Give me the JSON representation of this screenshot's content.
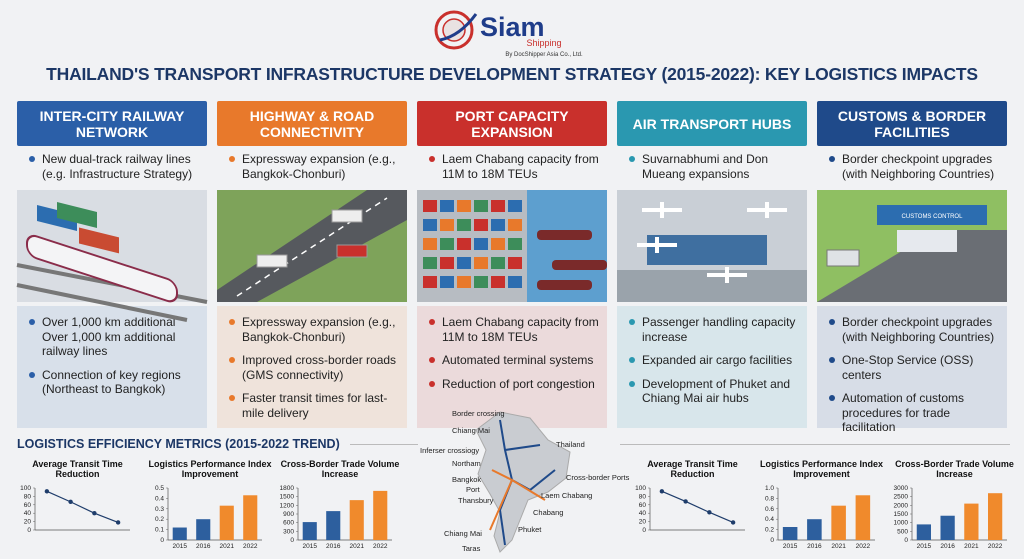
{
  "header": {
    "brand": "Siam",
    "brand_sub": "Shipping",
    "tagline": "By DocShipper Asia Co., Ltd.",
    "title": "THAILAND'S TRANSPORT INFRASTRUCTURE DEVELOPMENT STRATEGY (2015-2022): KEY LOGISTICS IMPACTS"
  },
  "columns": [
    {
      "title": "INTER-CITY RAILWAY NETWORK",
      "color": "#2b5fa8",
      "top_bullets": [
        "New dual-track railway lines (e.g. Infrastructure Strategy)"
      ],
      "bottom_bullets": [
        "Over 1,000 km additional Over 1,000 km additional railway lines",
        "Connection of key regions (Northeast to Bangkok)"
      ]
    },
    {
      "title": "HIGHWAY & ROAD CONNECTIVITY",
      "color": "#e8792b",
      "top_bullets": [
        "Expressway expansion (e.g., Bangkok-Chonburi)"
      ],
      "bottom_bullets": [
        "Expressway expansion (e.g., Bangkok-Chonburi)",
        "Improved cross-border roads (GMS connectivity)",
        "Faster transit times for last-mile delivery"
      ]
    },
    {
      "title": "PORT CAPACITY EXPANSION",
      "color": "#c9302c",
      "top_bullets": [
        "Laem Chabang capacity from 11M to 18M TEUs"
      ],
      "bottom_bullets": [
        "Laem Chabang capacity from 11M to 18M TEUs",
        "Automated terminal systems",
        "Reduction of port congestion"
      ]
    },
    {
      "title": "AIR TRANSPORT HUBS",
      "color": "#2a98b0",
      "top_bullets": [
        "Suvarnabhumi and Don Mueang expansions"
      ],
      "bottom_bullets": [
        "Passenger handling capacity increase",
        "Expanded air cargo facilities",
        "Development of Phuket and Chiang Mai air hubs"
      ]
    },
    {
      "title": "CUSTOMS & BORDER FACILITIES",
      "color": "#1f4a8a",
      "top_bullets": [
        "Border checkpoint upgrades (with Neighboring Countries)"
      ],
      "bottom_bullets": [
        "Border checkpoint upgrades (with Neighboring Countries)",
        "One-Stop Service (OSS) centers",
        "Automation of customs procedures for trade facilitation"
      ],
      "image_label": "CUSTOMS CONTROL"
    }
  ],
  "metrics": {
    "title": "LOGISTICS EFFICIENCY METRICS (2015-2022 TREND)"
  },
  "chart_data": [
    {
      "type": "line",
      "title": "Average Transit Time Reduction",
      "categories": [
        null,
        null,
        null,
        null
      ],
      "values": [
        92,
        67,
        40,
        18
      ],
      "color": "#1f3d6b",
      "ylim": [
        0,
        100
      ],
      "yticks": [
        0,
        20,
        40,
        60,
        80,
        100
      ]
    },
    {
      "type": "bar",
      "title": "Logistics Performance Index Improvement",
      "categories": [
        "2015",
        "2016",
        "2021",
        "2022"
      ],
      "values": [
        0.12,
        0.2,
        0.33,
        0.43
      ],
      "colors": [
        "#2d5f9e",
        "#2d5f9e",
        "#f08a2c",
        "#f08a2c"
      ],
      "ylim": [
        0,
        0.5
      ],
      "yticks": [
        0,
        0.1,
        0.2,
        0.3,
        0.4,
        0.5
      ]
    },
    {
      "type": "bar",
      "title": "Cross-Border Trade Volume Increase",
      "categories": [
        "2015",
        "2016",
        "2021",
        "2022"
      ],
      "values": [
        620,
        1000,
        1380,
        1700
      ],
      "colors": [
        "#2d5f9e",
        "#2d5f9e",
        "#f08a2c",
        "#f08a2c"
      ],
      "ylim": [
        0,
        1800
      ],
      "yticks": [
        0,
        300,
        600,
        900,
        1200,
        1500,
        1800
      ]
    },
    {
      "type": "line",
      "title": "Average Transit Time Reduction",
      "categories": [
        null,
        null,
        null,
        null
      ],
      "values": [
        92,
        68,
        42,
        18
      ],
      "color": "#1f3d6b",
      "ylim": [
        0,
        100
      ],
      "yticks": [
        0,
        20,
        40,
        60,
        80,
        100
      ]
    },
    {
      "type": "bar",
      "title": "Logistics Performance Index Improvement",
      "categories": [
        "2015",
        "2016",
        "2021",
        "2022"
      ],
      "values": [
        0.25,
        0.4,
        0.66,
        0.86
      ],
      "colors": [
        "#2d5f9e",
        "#2d5f9e",
        "#f08a2c",
        "#f08a2c"
      ],
      "ylim": [
        0,
        1
      ],
      "yticks": [
        0,
        0.2,
        0.4,
        0.6,
        0.8,
        {
          "value": 1,
          "label": "1.0"
        }
      ]
    },
    {
      "type": "bar",
      "title": "Cross-Border Trade Volume Increase",
      "categories": [
        "2015",
        "2016",
        "2021",
        "2022"
      ],
      "values": [
        900,
        1400,
        2100,
        2700
      ],
      "colors": [
        "#2d5f9e",
        "#2d5f9e",
        "#f08a2c",
        "#f08a2c"
      ],
      "ylim": [
        0,
        3000
      ],
      "yticks": [
        0,
        500,
        1000,
        1500,
        2000,
        2500,
        3000
      ]
    }
  ],
  "map": {
    "labels": [
      "Border crossing",
      "Chiang Mai",
      "Inferser crossiogy",
      "Northam",
      "Bangkok",
      "Port",
      "Thansbury",
      "Thailand",
      "Cross-border Ports",
      "Laem Chabang",
      "Chabang",
      "Chiang Mai",
      "Phuket",
      "Taras"
    ]
  }
}
